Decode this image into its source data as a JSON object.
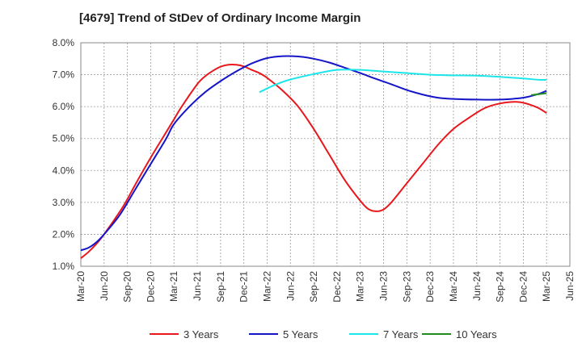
{
  "chart_data": {
    "type": "line",
    "title": "[4679]  Trend of StDev of Ordinary Income Margin",
    "xlabel": "",
    "ylabel": "",
    "x_tick_labels": [
      "Mar-20",
      "Jun-20",
      "Sep-20",
      "Dec-20",
      "Mar-21",
      "Jun-21",
      "Sep-21",
      "Dec-21",
      "Mar-22",
      "Jun-22",
      "Sep-22",
      "Dec-22",
      "Mar-23",
      "Jun-23",
      "Sep-23",
      "Dec-23",
      "Mar-24",
      "Jun-24",
      "Sep-24",
      "Dec-24",
      "Mar-25",
      "Jun-25"
    ],
    "y_tick_labels": [
      "1.0%",
      "2.0%",
      "3.0%",
      "4.0%",
      "5.0%",
      "6.0%",
      "7.0%",
      "8.0%"
    ],
    "ylim": [
      1.0,
      8.0
    ],
    "grid": true,
    "legend_position": "bottom",
    "series": [
      {
        "name": "3 Years",
        "color": "#e8171c",
        "points": [
          [
            "Mar-20",
            1.25
          ],
          [
            "Apr-20",
            1.45
          ],
          [
            "May-20",
            1.7
          ],
          [
            "Jun-20",
            2.0
          ],
          [
            "Aug-20",
            2.7
          ],
          [
            "Sep-20",
            3.1
          ],
          [
            "Oct-20",
            3.55
          ],
          [
            "Dec-20",
            4.4
          ],
          [
            "Feb-21",
            5.2
          ],
          [
            "Mar-21",
            5.6
          ],
          [
            "Apr-21",
            6.0
          ],
          [
            "Jun-21",
            6.7
          ],
          [
            "Jul-21",
            6.95
          ],
          [
            "Aug-21",
            7.12
          ],
          [
            "Sep-21",
            7.25
          ],
          [
            "Oct-21",
            7.31
          ],
          [
            "Nov-21",
            7.31
          ],
          [
            "Dec-21",
            7.26
          ],
          [
            "Jan-22",
            7.15
          ],
          [
            "Feb-22",
            7.05
          ],
          [
            "Mar-22",
            6.9
          ],
          [
            "May-22",
            6.5
          ],
          [
            "Jul-22",
            6.0
          ],
          [
            "Sep-22",
            5.3
          ],
          [
            "Nov-22",
            4.5
          ],
          [
            "Jan-23",
            3.7
          ],
          [
            "Mar-23",
            3.05
          ],
          [
            "Apr-23",
            2.8
          ],
          [
            "May-23",
            2.72
          ],
          [
            "Jun-23",
            2.78
          ],
          [
            "Jul-23",
            3.0
          ],
          [
            "Sep-23",
            3.6
          ],
          [
            "Nov-23",
            4.2
          ],
          [
            "Jan-24",
            4.8
          ],
          [
            "Mar-24",
            5.3
          ],
          [
            "May-24",
            5.65
          ],
          [
            "Jul-24",
            5.95
          ],
          [
            "Sep-24",
            6.1
          ],
          [
            "Nov-24",
            6.15
          ],
          [
            "Dec-24",
            6.12
          ],
          [
            "Jan-25",
            6.05
          ],
          [
            "Feb-25",
            5.95
          ],
          [
            "Mar-25",
            5.8
          ]
        ]
      },
      {
        "name": "5 Years",
        "color": "#1515c8",
        "points": [
          [
            "Mar-20",
            1.5
          ],
          [
            "Apr-20",
            1.58
          ],
          [
            "May-20",
            1.75
          ],
          [
            "Jun-20",
            2.0
          ],
          [
            "Aug-20",
            2.6
          ],
          [
            "Oct-20",
            3.4
          ],
          [
            "Dec-20",
            4.2
          ],
          [
            "Feb-21",
            5.0
          ],
          [
            "Mar-21",
            5.45
          ],
          [
            "May-21",
            6.0
          ],
          [
            "Jul-21",
            6.45
          ],
          [
            "Sep-21",
            6.8
          ],
          [
            "Nov-21",
            7.1
          ],
          [
            "Jan-22",
            7.35
          ],
          [
            "Mar-22",
            7.52
          ],
          [
            "May-22",
            7.58
          ],
          [
            "Jul-22",
            7.57
          ],
          [
            "Sep-22",
            7.5
          ],
          [
            "Nov-22",
            7.38
          ],
          [
            "Jan-23",
            7.22
          ],
          [
            "Mar-23",
            7.05
          ],
          [
            "May-23",
            6.87
          ],
          [
            "Jul-23",
            6.7
          ],
          [
            "Sep-23",
            6.52
          ],
          [
            "Nov-23",
            6.38
          ],
          [
            "Jan-24",
            6.28
          ],
          [
            "Mar-24",
            6.24
          ],
          [
            "Jun-24",
            6.22
          ],
          [
            "Sep-24",
            6.22
          ],
          [
            "Dec-24",
            6.28
          ],
          [
            "Feb-25",
            6.4
          ],
          [
            "Mar-25",
            6.5
          ]
        ]
      },
      {
        "name": "7 Years",
        "color": "#1ce6ea",
        "points": [
          [
            "Feb-22",
            6.45
          ],
          [
            "Apr-22",
            6.68
          ],
          [
            "Jun-22",
            6.85
          ],
          [
            "Sep-22",
            7.02
          ],
          [
            "Dec-22",
            7.15
          ],
          [
            "Mar-23",
            7.15
          ],
          [
            "Jun-23",
            7.1
          ],
          [
            "Sep-23",
            7.05
          ],
          [
            "Dec-23",
            7.0
          ],
          [
            "Mar-24",
            6.98
          ],
          [
            "Jun-24",
            6.97
          ],
          [
            "Sep-24",
            6.93
          ],
          [
            "Dec-24",
            6.88
          ],
          [
            "Feb-25",
            6.84
          ],
          [
            "Mar-25",
            6.84
          ]
        ]
      },
      {
        "name": "10 Years",
        "color": "#1e8c1e",
        "points": [
          [
            "Jan-25",
            6.36
          ],
          [
            "Feb-25",
            6.39
          ],
          [
            "Mar-25",
            6.42
          ]
        ]
      }
    ]
  }
}
